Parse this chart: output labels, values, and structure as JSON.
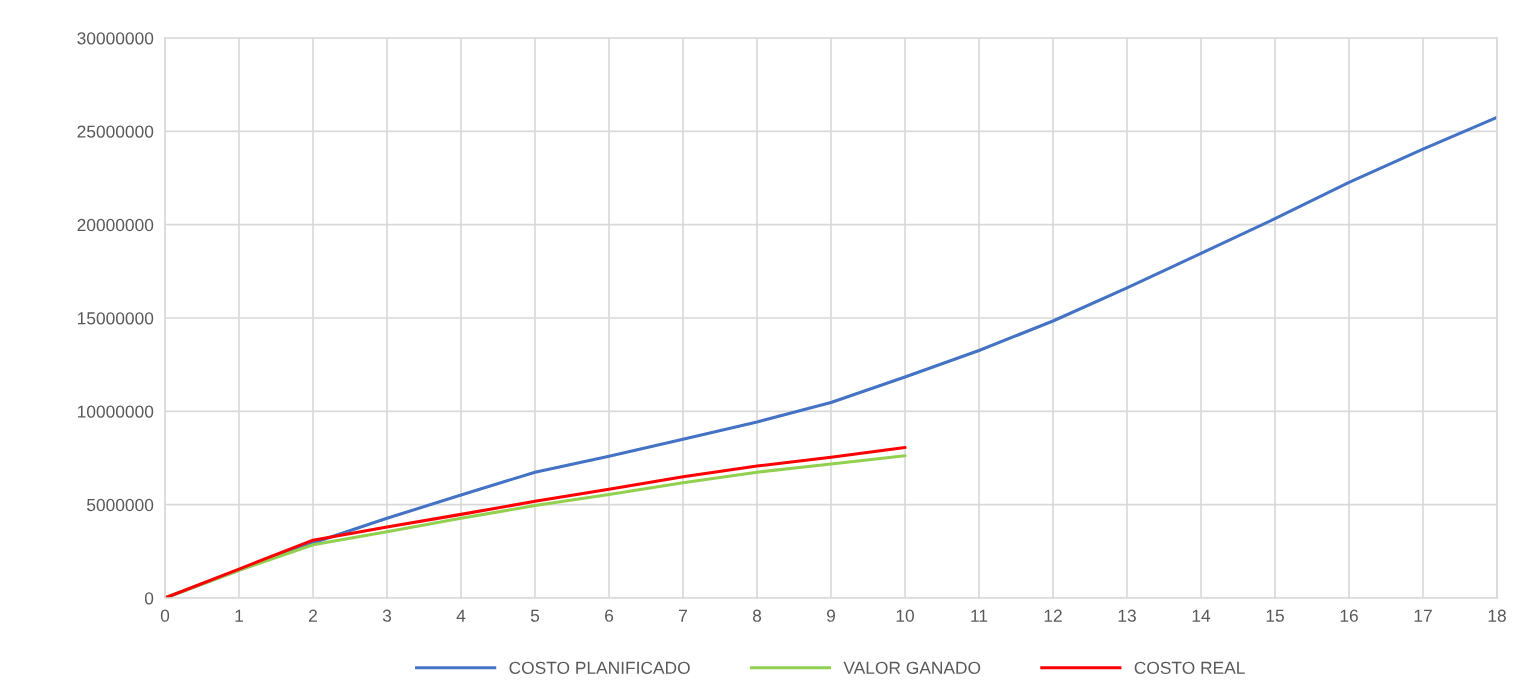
{
  "chart_data": {
    "type": "line",
    "x": [
      0,
      1,
      2,
      3,
      4,
      5,
      6,
      7,
      8,
      9,
      10,
      11,
      12,
      13,
      14,
      15,
      16,
      17,
      18
    ],
    "series": [
      {
        "name": "COSTO PLANIFICADO",
        "color": "#4472c4",
        "values": [
          0,
          1500000,
          2950000,
          4270000,
          5520000,
          6740000,
          7590000,
          8500000,
          9430000,
          10470000,
          11840000,
          13260000,
          14840000,
          16610000,
          18460000,
          20320000,
          22260000,
          24050000,
          25750000
        ]
      },
      {
        "name": "VALOR GANADO",
        "color": "#92d050",
        "x": [
          0,
          1,
          2,
          3,
          4,
          5,
          6,
          7,
          8,
          9,
          10
        ],
        "values": [
          0,
          1480000,
          2850000,
          3550000,
          4270000,
          4950000,
          5540000,
          6170000,
          6740000,
          7180000,
          7620000
        ]
      },
      {
        "name": "COSTO REAL",
        "color": "#ff0000",
        "x": [
          0,
          1,
          2,
          3,
          4,
          5,
          6,
          7,
          8,
          9,
          10
        ],
        "values": [
          0,
          1550000,
          3100000,
          3810000,
          4480000,
          5180000,
          5830000,
          6500000,
          7070000,
          7540000,
          8060000
        ]
      }
    ],
    "xlim": [
      0,
      18
    ],
    "xticks": [
      0,
      1,
      2,
      3,
      4,
      5,
      6,
      7,
      8,
      9,
      10,
      11,
      12,
      13,
      14,
      15,
      16,
      17,
      18
    ],
    "ylim": [
      0,
      30000000
    ],
    "yticks": [
      0,
      5000000,
      10000000,
      15000000,
      20000000,
      25000000,
      30000000
    ],
    "grid": true,
    "legend": "bottom",
    "marker": "none",
    "line_style": "solid"
  }
}
